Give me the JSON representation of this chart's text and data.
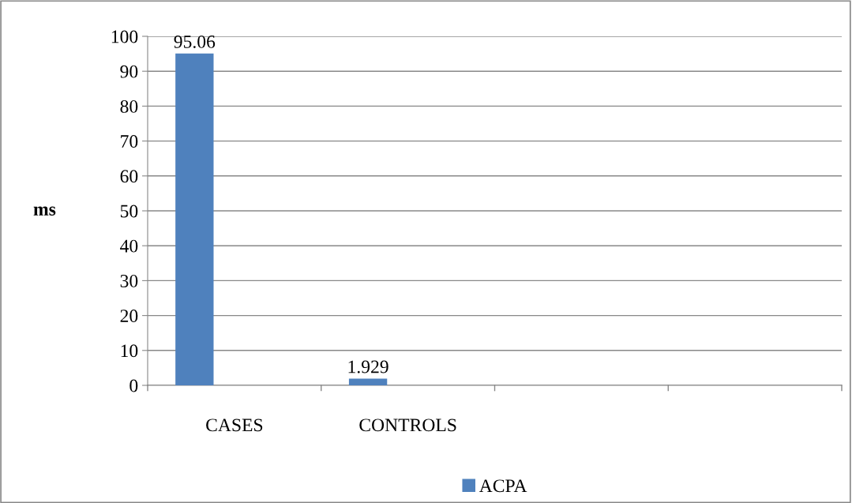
{
  "chart_data": {
    "type": "bar",
    "ylabel": "ms",
    "categories": [
      "CASES",
      "CONTROLS",
      null,
      null
    ],
    "series": [
      {
        "name": "ACPA",
        "color": "#4f81bd",
        "values": [
          95.06,
          1.929,
          null,
          null
        ]
      }
    ],
    "ylim": [
      0,
      100
    ],
    "yticks": [
      0,
      10,
      20,
      30,
      40,
      50,
      60,
      70,
      80,
      90,
      100
    ],
    "grid": "y",
    "legend": "bottom",
    "data_labels": true
  }
}
